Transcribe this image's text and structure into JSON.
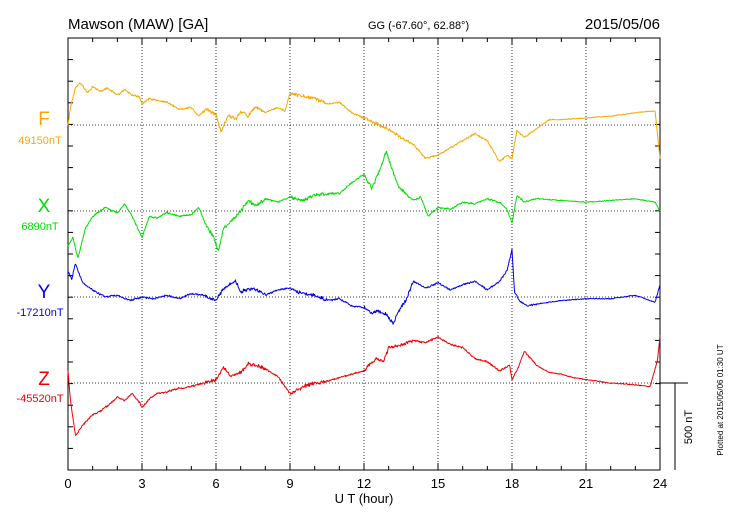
{
  "header": {
    "station": "Mawson (MAW)  [GA]",
    "coords": "GG (-67.60°,  62.88°)",
    "date": "2015/05/06"
  },
  "side_note": "Plotted at 2015/05/06 01:30 UT",
  "scale_label": "500 nT",
  "chart_data": {
    "type": "line",
    "xlabel": "U T (hour)",
    "xlim": [
      0,
      24
    ],
    "xticks": [
      "0",
      "3",
      "6",
      "9",
      "12",
      "15",
      "18",
      "21",
      "24"
    ],
    "grid": true,
    "scale_bar_nT": 500,
    "series": [
      {
        "name": "F",
        "baseline_label": "49150nT",
        "baseline_nT": 49150,
        "color": "#f5a800",
        "x": [
          0,
          0.1,
          0.3,
          0.5,
          0.8,
          1,
          1.3,
          1.6,
          2,
          2.3,
          2.6,
          2.9,
          3,
          3.3,
          3.6,
          4,
          4.5,
          5,
          5.3,
          5.6,
          6,
          6.2,
          6.5,
          6.8,
          7,
          7.3,
          7.6,
          8,
          8.5,
          8.8,
          9,
          9.3,
          9.6,
          10,
          10.5,
          11,
          11.5,
          12,
          12.3,
          12.6,
          13,
          13.5,
          14,
          14.5,
          15,
          15.5,
          16,
          16.5,
          17,
          17.5,
          17.8,
          18,
          18.2,
          18.5,
          19,
          19.5,
          20,
          21,
          22,
          23,
          23.8,
          24
        ],
        "y": [
          49150,
          49250,
          49360,
          49390,
          49330,
          49370,
          49340,
          49360,
          49320,
          49350,
          49320,
          49310,
          49270,
          49300,
          49290,
          49280,
          49240,
          49250,
          49200,
          49240,
          49210,
          49110,
          49210,
          49180,
          49230,
          49200,
          49250,
          49220,
          49250,
          49230,
          49330,
          49320,
          49310,
          49300,
          49270,
          49280,
          49220,
          49190,
          49170,
          49150,
          49130,
          49080,
          49040,
          48960,
          48980,
          49020,
          49060,
          49100,
          49060,
          48940,
          48980,
          48960,
          49120,
          49080,
          49130,
          49180,
          49180,
          49190,
          49200,
          49220,
          49230,
          48960
        ]
      },
      {
        "name": "X",
        "baseline_label": "6890nT",
        "baseline_nT": 6890,
        "color": "#00dd00",
        "x": [
          0,
          0.2,
          0.4,
          0.7,
          1,
          1.5,
          2,
          2.3,
          2.6,
          2.9,
          3,
          3.3,
          3.6,
          4,
          4.5,
          5,
          5.3,
          5.6,
          5.9,
          6.1,
          6.3,
          6.6,
          7,
          7.3,
          7.6,
          8,
          8.5,
          9,
          9.5,
          10,
          10.5,
          11,
          11.5,
          12,
          12.3,
          12.6,
          12.9,
          13.1,
          13.4,
          13.7,
          14,
          14.3,
          14.6,
          15,
          15.5,
          16,
          16.5,
          17,
          17.5,
          17.8,
          18,
          18.2,
          18.5,
          19,
          20,
          21,
          22,
          23,
          23.8,
          24
        ],
        "y": [
          6690,
          6740,
          6620,
          6790,
          6860,
          6910,
          6880,
          6930,
          6860,
          6770,
          6740,
          6860,
          6850,
          6880,
          6860,
          6870,
          6910,
          6810,
          6740,
          6660,
          6790,
          6830,
          6890,
          6950,
          6920,
          6960,
          6940,
          6970,
          6950,
          6980,
          6990,
          6990,
          7050,
          7100,
          7020,
          7110,
          7230,
          7140,
          7030,
          6990,
          6950,
          6970,
          6860,
          6910,
          6900,
          6940,
          6930,
          6960,
          6940,
          6900,
          6820,
          6980,
          6940,
          6960,
          6950,
          6940,
          6950,
          6960,
          6940,
          6890
        ]
      },
      {
        "name": "Y",
        "baseline_label": "-17210nT",
        "baseline_nT": -17210,
        "color": "#0000ee",
        "x": [
          0,
          0.15,
          0.3,
          0.6,
          1,
          1.5,
          2,
          2.5,
          3,
          3.5,
          4,
          4.5,
          5,
          5.5,
          6,
          6.3,
          6.8,
          7,
          7.5,
          8,
          8.5,
          9,
          9.5,
          10,
          10.5,
          11,
          11.5,
          12,
          12.3,
          12.6,
          12.9,
          13.2,
          13.4,
          13.7,
          14,
          14.5,
          15,
          15.5,
          16,
          16.5,
          17,
          17.5,
          17.8,
          18,
          18.1,
          18.3,
          18.6,
          19,
          19.5,
          20,
          21,
          22,
          23,
          23.8,
          24
        ],
        "y": [
          -17060,
          -17110,
          -17020,
          -17130,
          -17170,
          -17210,
          -17200,
          -17230,
          -17210,
          -17220,
          -17200,
          -17220,
          -17190,
          -17200,
          -17230,
          -17160,
          -17120,
          -17180,
          -17160,
          -17200,
          -17170,
          -17160,
          -17190,
          -17200,
          -17230,
          -17220,
          -17260,
          -17270,
          -17300,
          -17290,
          -17310,
          -17360,
          -17290,
          -17230,
          -17120,
          -17160,
          -17130,
          -17170,
          -17140,
          -17120,
          -17170,
          -17120,
          -17060,
          -16940,
          -17180,
          -17230,
          -17260,
          -17250,
          -17240,
          -17230,
          -17220,
          -17220,
          -17200,
          -17240,
          -17140
        ]
      },
      {
        "name": "Z",
        "baseline_label": "-45520nT",
        "baseline_nT": -45520,
        "color": "#ee0000",
        "x": [
          0,
          0.1,
          0.3,
          0.6,
          1,
          1.3,
          1.6,
          2,
          2.3,
          2.6,
          2.9,
          3,
          3.3,
          3.6,
          4,
          4.5,
          5,
          5.5,
          6,
          6.3,
          6.6,
          7,
          7.3,
          7.6,
          8,
          8.5,
          9,
          9.3,
          9.6,
          10,
          10.5,
          11,
          11.5,
          12,
          12.5,
          12.8,
          13,
          13.3,
          13.6,
          14,
          14.5,
          15,
          15.5,
          16,
          16.5,
          17,
          17.5,
          17.9,
          18,
          18.2,
          18.5,
          19,
          19.5,
          20,
          20.5,
          21,
          21.5,
          22,
          23,
          23.6,
          23.9,
          24
        ],
        "y": [
          -45450,
          -45620,
          -45820,
          -45760,
          -45700,
          -45680,
          -45650,
          -45600,
          -45620,
          -45580,
          -45630,
          -45660,
          -45610,
          -45580,
          -45570,
          -45550,
          -45540,
          -45520,
          -45500,
          -45430,
          -45480,
          -45460,
          -45410,
          -45420,
          -45440,
          -45480,
          -45580,
          -45560,
          -45540,
          -45520,
          -45510,
          -45490,
          -45470,
          -45450,
          -45380,
          -45400,
          -45320,
          -45310,
          -45300,
          -45280,
          -45290,
          -45260,
          -45300,
          -45320,
          -45380,
          -45400,
          -45450,
          -45420,
          -45500,
          -45450,
          -45340,
          -45420,
          -45460,
          -45470,
          -45490,
          -45500,
          -45510,
          -45520,
          -45530,
          -45540,
          -45390,
          -45250
        ]
      }
    ]
  }
}
